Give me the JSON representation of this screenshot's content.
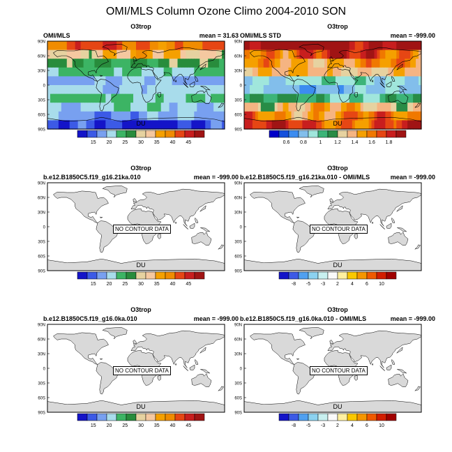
{
  "title": "OMI/MLS Column Ozone Climo 2004-2010 SON",
  "lat_labels": [
    "90N",
    "60N",
    "30N",
    "0",
    "30S",
    "60S",
    "90S"
  ],
  "units": "DU",
  "no_contour_text": "NO CONTOUR DATA",
  "palettes": {
    "abs": [
      "#1414c8",
      "#3c5ae6",
      "#78a0f0",
      "#a8dceb",
      "#3cb464",
      "#288c3c",
      "#e6d2a0",
      "#f5c8a0",
      "#f5a000",
      "#f08c00",
      "#e64614",
      "#c81e1e",
      "#a01414"
    ],
    "std": [
      "#0000c8",
      "#1450dc",
      "#3c8cf0",
      "#82beeb",
      "#a0e6dc",
      "#3cb478",
      "#288c46",
      "#e6d2a0",
      "#f5b482",
      "#f5a000",
      "#f07800",
      "#e64614",
      "#c81e1e",
      "#a01414"
    ],
    "diff": [
      "#1414c8",
      "#3c5ae6",
      "#50a0f0",
      "#8cd2f0",
      "#c8f0f0",
      "#fafafa",
      "#fff0a0",
      "#fac800",
      "#f59600",
      "#f05a00",
      "#d21e00",
      "#a00000"
    ]
  },
  "panels": [
    {
      "variable": "O3trop",
      "left_title": "OMI/MLS",
      "right_title": "mean =  31.63",
      "fill": "abs",
      "no_contour": false,
      "colorbar_label": "DU",
      "colorbar_palette": "abs",
      "colorbar_ticks": [
        "15",
        "20",
        "25",
        "30",
        "35",
        "40",
        "45"
      ]
    },
    {
      "variable": "O3trop",
      "left_title": "OMI/MLS STD",
      "right_title": "mean = -999.00",
      "fill": "std",
      "no_contour": false,
      "colorbar_label": "DU",
      "colorbar_palette": "std",
      "colorbar_ticks": [
        "0.6",
        "0.8",
        "1",
        "1.2",
        "1.4",
        "1.6",
        "1.8"
      ]
    },
    {
      "variable": "O3trop",
      "left_title": "b.e12.B1850C5.f19_g16.21ka.010",
      "right_title": "mean = -999.00",
      "fill": "none",
      "no_contour": true,
      "colorbar_label": "DU",
      "colorbar_palette": "abs",
      "colorbar_ticks": [
        "15",
        "20",
        "25",
        "30",
        "35",
        "40",
        "45"
      ]
    },
    {
      "variable": "O3trop",
      "left_title": "b.e12.B1850C5.f19_g16.21ka.010 - OMI/MLS",
      "right_title": "mean = -999.00",
      "fill": "none",
      "no_contour": true,
      "colorbar_label": "DU",
      "colorbar_palette": "diff",
      "colorbar_ticks": [
        "-8",
        "-5",
        "-3",
        "2",
        "4",
        "6",
        "10"
      ]
    },
    {
      "variable": "O3trop",
      "left_title": "b.e12.B1850C5.f19_g16.0ka.010",
      "right_title": "mean = -999.00",
      "fill": "none",
      "no_contour": true,
      "colorbar_label": "DU",
      "colorbar_palette": "abs",
      "colorbar_ticks": [
        "15",
        "20",
        "25",
        "30",
        "35",
        "40",
        "45"
      ]
    },
    {
      "variable": "O3trop",
      "left_title": "b.e12.B1850C5.f19_g16.0ka.010 - OMI/MLS",
      "right_title": "mean = -999.00",
      "fill": "none",
      "no_contour": true,
      "colorbar_label": "DU",
      "colorbar_palette": "diff",
      "colorbar_ticks": [
        "-8",
        "-5",
        "-3",
        "2",
        "4",
        "6",
        "10"
      ]
    }
  ],
  "chart_data": {
    "type": "heatmap",
    "title": "OMI/MLS Column Ozone Climo 2004-2010 SON",
    "variable": "O3trop",
    "units": "DU",
    "ylim": [
      "90S",
      "90N"
    ],
    "y_ticks": [
      "90N",
      "60N",
      "30N",
      "0",
      "30S",
      "60S",
      "90S"
    ],
    "panels": [
      {
        "left_title": "OMI/MLS",
        "mean": 31.63,
        "levels": [
          15,
          20,
          25,
          30,
          35,
          40,
          45
        ]
      },
      {
        "left_title": "OMI/MLS STD",
        "mean": -999.0,
        "levels": [
          0.6,
          0.8,
          1,
          1.2,
          1.4,
          1.6,
          1.8
        ]
      },
      {
        "left_title": "b.e12.B1850C5.f19_g16.21ka.010",
        "mean": -999.0,
        "status": "NO CONTOUR DATA",
        "levels": [
          15,
          20,
          25,
          30,
          35,
          40,
          45
        ]
      },
      {
        "left_title": "b.e12.B1850C5.f19_g16.21ka.010 - OMI/MLS",
        "mean": -999.0,
        "status": "NO CONTOUR DATA",
        "levels": [
          -8,
          -5,
          -3,
          2,
          4,
          6,
          10
        ]
      },
      {
        "left_title": "b.e12.B1850C5.f19_g16.0ka.010",
        "mean": -999.0,
        "status": "NO CONTOUR DATA",
        "levels": [
          15,
          20,
          25,
          30,
          35,
          40,
          45
        ]
      },
      {
        "left_title": "b.e12.B1850C5.f19_g16.0ka.010 - OMI/MLS",
        "mean": -999.0,
        "status": "NO CONTOUR DATA",
        "levels": [
          -8,
          -5,
          -3,
          2,
          4,
          6,
          10
        ]
      }
    ]
  }
}
